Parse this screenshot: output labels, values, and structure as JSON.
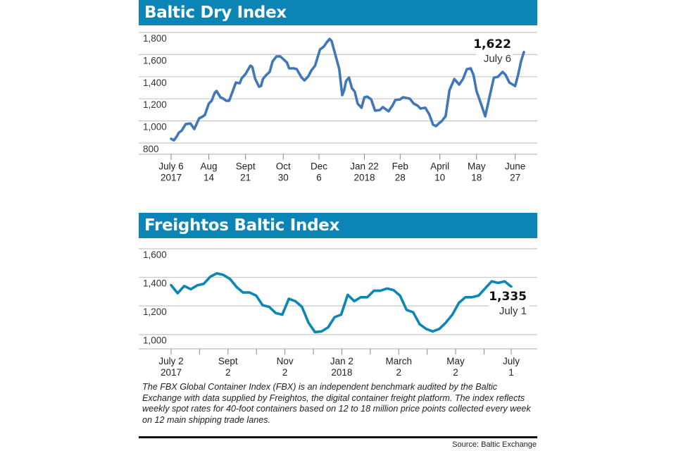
{
  "chart_data": [
    {
      "type": "line",
      "title": "Baltic Dry Index",
      "xlabel": "",
      "ylabel": "",
      "x_unit": "days since July 6, 2017",
      "xlim": [
        0,
        365
      ],
      "ylim": [
        700,
        1800
      ],
      "yticks": [
        800,
        1000,
        1200,
        1400,
        1600,
        1800
      ],
      "ytick_labels": [
        "800",
        "1,000",
        "1,200",
        "1,400",
        "1,600",
        "1,800"
      ],
      "grid": true,
      "xticks": [
        {
          "t": 0,
          "line1": "July 6",
          "line2": "2017"
        },
        {
          "t": 39,
          "line1": "Aug",
          "line2": "14"
        },
        {
          "t": 77,
          "line1": "Sept",
          "line2": "21"
        },
        {
          "t": 116,
          "line1": "Oct",
          "line2": "30"
        },
        {
          "t": 153,
          "line1": "Dec",
          "line2": "6"
        },
        {
          "t": 200,
          "line1": "Jan 22",
          "line2": "2018"
        },
        {
          "t": 237,
          "line1": "Feb",
          "line2": "28"
        },
        {
          "t": 278,
          "line1": "April",
          "line2": "10"
        },
        {
          "t": 316,
          "line1": "May",
          "line2": "18"
        },
        {
          "t": 356,
          "line1": "June",
          "line2": "27"
        }
      ],
      "series": [
        {
          "name": "Baltic Dry Index",
          "color": "#3f77b8",
          "points": [
            [
              0,
              838
            ],
            [
              3,
              825
            ],
            [
              6,
              862
            ],
            [
              8,
              894
            ],
            [
              11,
              913
            ],
            [
              15,
              971
            ],
            [
              20,
              977
            ],
            [
              24,
              927
            ],
            [
              29,
              1023
            ],
            [
              33,
              1042
            ],
            [
              35,
              1055
            ],
            [
              39,
              1157
            ],
            [
              42,
              1182
            ],
            [
              45,
              1252
            ],
            [
              47,
              1271
            ],
            [
              51,
              1214
            ],
            [
              54,
              1201
            ],
            [
              57,
              1182
            ],
            [
              60,
              1182
            ],
            [
              63,
              1252
            ],
            [
              67,
              1347
            ],
            [
              71,
              1341
            ],
            [
              73,
              1385
            ],
            [
              77,
              1424
            ],
            [
              82,
              1500
            ],
            [
              84,
              1487
            ],
            [
              87,
              1379
            ],
            [
              91,
              1309
            ],
            [
              93,
              1316
            ],
            [
              95,
              1379
            ],
            [
              98,
              1411
            ],
            [
              102,
              1443
            ],
            [
              105,
              1538
            ],
            [
              109,
              1583
            ],
            [
              113,
              1583
            ],
            [
              117,
              1551
            ],
            [
              120,
              1526
            ],
            [
              122,
              1475
            ],
            [
              127,
              1475
            ],
            [
              130,
              1468
            ],
            [
              135,
              1392
            ],
            [
              138,
              1366
            ],
            [
              142,
              1404
            ],
            [
              145,
              1455
            ],
            [
              149,
              1500
            ],
            [
              154,
              1646
            ],
            [
              158,
              1672
            ],
            [
              161,
              1710
            ],
            [
              164,
              1741
            ],
            [
              166,
              1722
            ],
            [
              169,
              1627
            ],
            [
              174,
              1468
            ],
            [
              177,
              1233
            ],
            [
              179,
              1277
            ],
            [
              181,
              1360
            ],
            [
              184,
              1392
            ],
            [
              187,
              1297
            ],
            [
              190,
              1265
            ],
            [
              193,
              1157
            ],
            [
              197,
              1119
            ],
            [
              200,
              1214
            ],
            [
              203,
              1220
            ],
            [
              207,
              1195
            ],
            [
              211,
              1093
            ],
            [
              216,
              1099
            ],
            [
              219,
              1125
            ],
            [
              225,
              1087
            ],
            [
              229,
              1138
            ],
            [
              232,
              1189
            ],
            [
              237,
              1195
            ],
            [
              240,
              1214
            ],
            [
              247,
              1201
            ],
            [
              251,
              1157
            ],
            [
              255,
              1138
            ],
            [
              258,
              1112
            ],
            [
              263,
              1119
            ],
            [
              267,
              1061
            ],
            [
              271,
              966
            ],
            [
              274,
              953
            ],
            [
              278,
              985
            ],
            [
              280,
              998
            ],
            [
              284,
              1042
            ],
            [
              288,
              1277
            ],
            [
              293,
              1379
            ],
            [
              298,
              1328
            ],
            [
              302,
              1379
            ],
            [
              306,
              1468
            ],
            [
              310,
              1475
            ],
            [
              313,
              1411
            ],
            [
              316,
              1271
            ],
            [
              322,
              1119
            ],
            [
              325,
              1042
            ],
            [
              329,
              1201
            ],
            [
              334,
              1392
            ],
            [
              338,
              1398
            ],
            [
              343,
              1443
            ],
            [
              346,
              1417
            ],
            [
              350,
              1347
            ],
            [
              356,
              1315
            ],
            [
              359,
              1417
            ],
            [
              362,
              1538
            ],
            [
              365,
              1622
            ]
          ]
        }
      ],
      "annotation": {
        "value": "1,622",
        "date": "July 6"
      }
    },
    {
      "type": "line",
      "title": "Freightos Baltic Index",
      "xlabel": "",
      "ylabel": "",
      "x_unit": "weeks since July 2, 2017",
      "xlim": [
        0,
        52
      ],
      "ylim": [
        900,
        1600
      ],
      "yticks": [
        1000,
        1200,
        1400,
        1600
      ],
      "ytick_labels": [
        "1,000",
        "1,200",
        "1,400",
        "1,600"
      ],
      "grid": true,
      "minor_xticks": [
        4.35,
        13.05,
        21.75,
        30.45,
        39.15,
        47.85
      ],
      "xticks": [
        {
          "t": 0,
          "line1": "July 2",
          "line2": "2017"
        },
        {
          "t": 8.7,
          "line1": "Sept",
          "line2": "2"
        },
        {
          "t": 17.4,
          "line1": "Nov",
          "line2": "2"
        },
        {
          "t": 26.1,
          "line1": "Jan 2",
          "line2": "2018"
        },
        {
          "t": 34.8,
          "line1": "March",
          "line2": "2"
        },
        {
          "t": 43.5,
          "line1": "May",
          "line2": "2"
        },
        {
          "t": 52,
          "line1": "July",
          "line2": "1"
        }
      ],
      "series": [
        {
          "name": "Freightos Baltic Index",
          "color": "#0c86b4",
          "points": [
            [
              0,
              1345
            ],
            [
              1,
              1289
            ],
            [
              2,
              1339
            ],
            [
              3,
              1317
            ],
            [
              4,
              1344
            ],
            [
              5,
              1355
            ],
            [
              6,
              1405
            ],
            [
              7,
              1428
            ],
            [
              8,
              1417
            ],
            [
              9,
              1389
            ],
            [
              10,
              1333
            ],
            [
              11,
              1294
            ],
            [
              12,
              1294
            ],
            [
              13,
              1272
            ],
            [
              14,
              1205
            ],
            [
              15,
              1194
            ],
            [
              16,
              1150
            ],
            [
              17,
              1139
            ],
            [
              18,
              1250
            ],
            [
              19,
              1233
            ],
            [
              20,
              1194
            ],
            [
              21,
              1083
            ],
            [
              22,
              1017
            ],
            [
              23,
              1022
            ],
            [
              24,
              1050
            ],
            [
              25,
              1122
            ],
            [
              26,
              1139
            ],
            [
              27,
              1278
            ],
            [
              28,
              1233
            ],
            [
              29,
              1261
            ],
            [
              30,
              1261
            ],
            [
              31,
              1306
            ],
            [
              32,
              1306
            ],
            [
              33,
              1322
            ],
            [
              34,
              1311
            ],
            [
              35,
              1272
            ],
            [
              36,
              1172
            ],
            [
              37,
              1156
            ],
            [
              38,
              1072
            ],
            [
              39,
              1039
            ],
            [
              40,
              1022
            ],
            [
              41,
              1039
            ],
            [
              42,
              1083
            ],
            [
              43,
              1139
            ],
            [
              44,
              1222
            ],
            [
              45,
              1261
            ],
            [
              46,
              1261
            ],
            [
              47,
              1272
            ],
            [
              48,
              1322
            ],
            [
              49,
              1372
            ],
            [
              50,
              1361
            ],
            [
              51,
              1372
            ],
            [
              52,
              1335
            ]
          ]
        }
      ],
      "annotation": {
        "value": "1,335",
        "date": "July 1"
      }
    }
  ],
  "note": "The FBX Global Container Index (FBX) is an independent benchmark audited by the Baltic Exchange with data supplied by Freightos, the digital container freight platform. The index reflects weekly spot rates for 40-foot containers based on 12 to 18 million price points collected every week on 12 main shipping trade lanes.",
  "source": "Source: Baltic Exchange"
}
